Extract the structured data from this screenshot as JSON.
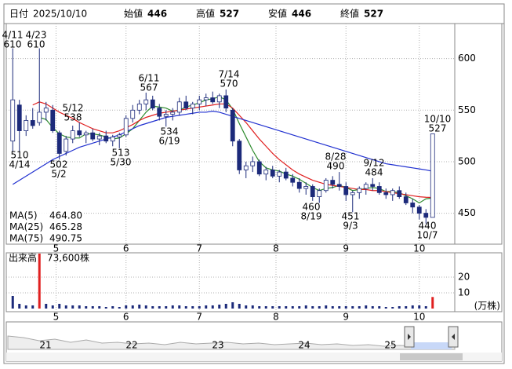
{
  "header": [
    {
      "label": "日付",
      "value": "2025/10/10",
      "color": "#000000"
    },
    {
      "label": "始値",
      "value": 446,
      "color": "#000000"
    },
    {
      "label": "高値",
      "value": 527,
      "color": "#e00000"
    },
    {
      "label": "安値",
      "value": 446,
      "color": "#008000"
    },
    {
      "label": "終値",
      "value": 527,
      "color": "#000000"
    }
  ],
  "chart_data": {
    "type": "candlestick",
    "xlim": [
      0,
      64
    ],
    "ylim": [
      420,
      634
    ],
    "yticks": [
      450,
      500,
      550,
      600
    ],
    "grid": true,
    "xticks": [
      {
        "value": 7,
        "label": "5"
      },
      {
        "value": 17.5,
        "label": "6"
      },
      {
        "value": 28.5,
        "label": "7"
      },
      {
        "value": 40,
        "label": "8"
      },
      {
        "value": 50.5,
        "label": "9"
      },
      {
        "value": 61.5,
        "label": "10"
      }
    ],
    "up_color": "#ffffff",
    "down_color": "#1c2a7a",
    "open": [
      520,
      555,
      530,
      540,
      538,
      548,
      550,
      528,
      510,
      522,
      530,
      526,
      528,
      522,
      525,
      520,
      524,
      526,
      542,
      550,
      556,
      560,
      552,
      544,
      546,
      548,
      558,
      552,
      556,
      560,
      562,
      558,
      564,
      550,
      520,
      492,
      496,
      500,
      488,
      492,
      486,
      490,
      484,
      480,
      474,
      476,
      466,
      472,
      482,
      478,
      476,
      468,
      470,
      474,
      478,
      476,
      470,
      468,
      472,
      466,
      460,
      456,
      450,
      446
    ],
    "high": [
      610,
      560,
      545,
      552,
      610,
      558,
      555,
      530,
      525,
      535,
      538,
      530,
      532,
      528,
      530,
      526,
      528,
      545,
      555,
      560,
      567,
      564,
      556,
      550,
      552,
      562,
      564,
      558,
      564,
      566,
      568,
      566,
      570,
      552,
      522,
      500,
      505,
      502,
      495,
      496,
      492,
      494,
      488,
      484,
      480,
      478,
      474,
      484,
      486,
      490,
      480,
      472,
      476,
      480,
      484,
      480,
      474,
      474,
      476,
      470,
      464,
      458,
      454,
      527
    ],
    "low": [
      510,
      510,
      525,
      532,
      535,
      540,
      528,
      502,
      506,
      518,
      524,
      518,
      520,
      516,
      518,
      515,
      513,
      524,
      538,
      546,
      550,
      550,
      540,
      534,
      540,
      545,
      550,
      546,
      550,
      554,
      556,
      552,
      548,
      515,
      488,
      484,
      490,
      486,
      482,
      484,
      480,
      482,
      476,
      470,
      468,
      462,
      460,
      470,
      474,
      472,
      462,
      451,
      464,
      468,
      472,
      468,
      464,
      462,
      464,
      458,
      450,
      444,
      440,
      446
    ],
    "close": [
      560,
      530,
      540,
      535,
      548,
      552,
      530,
      508,
      522,
      530,
      526,
      528,
      522,
      525,
      520,
      524,
      526,
      542,
      550,
      556,
      560,
      552,
      544,
      546,
      548,
      558,
      552,
      556,
      560,
      562,
      558,
      564,
      552,
      520,
      492,
      496,
      500,
      488,
      492,
      486,
      490,
      484,
      480,
      474,
      476,
      466,
      472,
      482,
      478,
      476,
      468,
      470,
      474,
      478,
      476,
      470,
      468,
      472,
      466,
      460,
      456,
      450,
      446,
      527
    ],
    "ma": [
      {
        "name": "MA(5)",
        "color": "#2e8b2e",
        "legend_value": "464.80",
        "values": [
          null,
          null,
          null,
          null,
          543,
          541,
          533,
          527,
          524,
          523,
          523,
          527,
          527,
          526,
          524,
          522,
          523,
          527,
          532,
          540,
          548,
          554,
          553,
          552,
          549,
          550,
          553,
          555,
          557,
          560,
          561,
          563,
          560,
          551,
          537,
          524,
          511,
          500,
          494,
          492,
          491,
          488,
          486,
          483,
          479,
          475,
          472,
          474,
          475,
          477,
          475,
          472,
          473,
          474,
          475,
          474,
          471,
          471,
          470,
          467,
          464,
          460,
          464,
          464.8
        ]
      },
      {
        "name": "MA(25)",
        "color": "#e02020",
        "legend_value": "465.28",
        "values": [
          null,
          null,
          null,
          555,
          558,
          556,
          552,
          548,
          545,
          542,
          538,
          535,
          532,
          530,
          528,
          528,
          530,
          533,
          536,
          540,
          543,
          545,
          547,
          548,
          549,
          550,
          551,
          552,
          553,
          554,
          555,
          556,
          556,
          552,
          545,
          538,
          530,
          522,
          515,
          508,
          502,
          497,
          492,
          488,
          485,
          482,
          480,
          478,
          477,
          476,
          475,
          474,
          473,
          473,
          472,
          472,
          471,
          470,
          469,
          468,
          467,
          466,
          465.5,
          465.28
        ]
      },
      {
        "name": "MA(75)",
        "color": "#2030d0",
        "legend_value": "490.75",
        "values": [
          478,
          482,
          486,
          490,
          494,
          498,
          502,
          505,
          508,
          511,
          514,
          516,
          518,
          520,
          522,
          524,
          526,
          529,
          532,
          535,
          537,
          539,
          541,
          543,
          544,
          545,
          546,
          547,
          548,
          548,
          549,
          548,
          546,
          544,
          542,
          540,
          538,
          536,
          534,
          532,
          530,
          528,
          526,
          524,
          522,
          520,
          518,
          516,
          514,
          512,
          510,
          508,
          506,
          504,
          502,
          500,
          498,
          497,
          496,
          495,
          494,
          493,
          492,
          490.75
        ]
      }
    ],
    "annotations": [
      {
        "date": "4/11",
        "value": 610,
        "pos": "high"
      },
      {
        "date": "4/23",
        "value": 610,
        "pos": "high"
      },
      {
        "date": "5/12",
        "value": 538,
        "pos": "high"
      },
      {
        "date": "6/11",
        "value": 567,
        "pos": "high"
      },
      {
        "date": "7/14",
        "value": 570,
        "pos": "high"
      },
      {
        "date": "8/28",
        "value": 490,
        "pos": "high"
      },
      {
        "date": "9/12",
        "value": 484,
        "pos": "high"
      },
      {
        "date": "10/10",
        "value": 527,
        "pos": "high"
      },
      {
        "date": "4/14",
        "value": 510,
        "pos": "low"
      },
      {
        "date": "5/2",
        "value": 502,
        "pos": "low"
      },
      {
        "date": "5/30",
        "value": 513,
        "pos": "low"
      },
      {
        "date": "6/19",
        "value": 534,
        "pos": "low"
      },
      {
        "date": "8/19",
        "value": 460,
        "pos": "low"
      },
      {
        "date": "9/3",
        "value": 451,
        "pos": "low"
      },
      {
        "date": "10/7",
        "value": 440,
        "pos": "low"
      }
    ],
    "volume": {
      "label": "出来高",
      "text": "73,600株",
      "unit": "(万株)",
      "color": "#1c2a7a",
      "highlight_color": "#e02020",
      "highlight": [
        4,
        63
      ],
      "ylim": [
        0,
        35.5
      ],
      "yticks": [
        10,
        20
      ],
      "values": [
        8,
        3,
        2,
        2,
        35,
        3,
        2,
        3,
        2,
        2,
        2,
        1.5,
        1.5,
        1.5,
        1,
        1.5,
        1,
        2,
        2,
        2.5,
        2,
        1.5,
        1.5,
        1.5,
        2,
        2,
        1.5,
        1.5,
        1.5,
        2,
        2,
        2.5,
        3,
        4,
        3,
        2,
        2,
        1.5,
        1.5,
        1.5,
        1.5,
        1.5,
        1.5,
        1.5,
        2,
        1.5,
        1.5,
        2,
        1.5,
        1.5,
        1.5,
        1.5,
        1.5,
        2,
        1.5,
        1.5,
        1,
        1,
        1.5,
        1.5,
        2,
        2,
        1.5,
        7.36
      ]
    },
    "navigator": {
      "labels": [
        "21",
        "22",
        "23",
        "24",
        "25"
      ]
    }
  }
}
